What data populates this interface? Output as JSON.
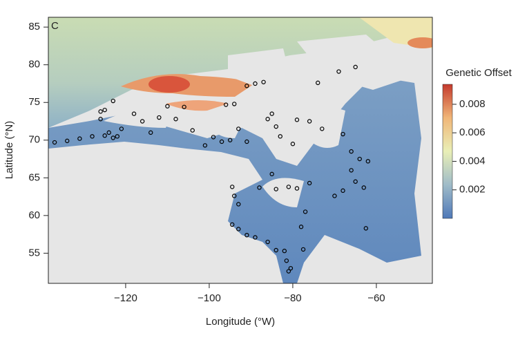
{
  "chart_data": {
    "type": "map",
    "panel_label": "C",
    "x_label": "Longitude (°W)",
    "y_label": "Latitude (°N)",
    "xlim": [
      -138.5,
      -46.6
    ],
    "ylim": [
      51,
      86.3
    ],
    "xticks": [
      {
        "value": -120,
        "label": "−120"
      },
      {
        "value": -100,
        "label": "−100"
      },
      {
        "value": -80,
        "label": "−80"
      },
      {
        "value": -60,
        "label": "−60"
      }
    ],
    "yticks": [
      55,
      60,
      65,
      70,
      75,
      80,
      85
    ],
    "colorbar": {
      "title": "Genetic Offset",
      "lim": [
        0,
        0.0094
      ],
      "ticks": [
        0.002,
        0.004,
        0.006,
        0.008
      ],
      "colors": [
        "#4f79b8",
        "#9fbbc8",
        "#e9efb6",
        "#f0b678",
        "#c43a2d"
      ]
    },
    "points": {
      "color": "#000000",
      "x": [
        -137,
        -134,
        -131,
        -128,
        -125,
        -124,
        -123,
        -122,
        -121,
        -126,
        -125,
        -123,
        -126,
        -118,
        -116,
        -112,
        -110,
        -108,
        -106,
        -114,
        -104,
        -101,
        -99,
        -97,
        -95,
        -93,
        -91,
        -96,
        -94,
        -91,
        -89,
        -87,
        -86,
        -85,
        -84,
        -83,
        -80,
        -79,
        -76,
        -73,
        -69,
        -65,
        -74,
        -68,
        -66,
        -64,
        -62,
        -66,
        -65,
        -63,
        -68,
        -70,
        -85,
        -88,
        -84,
        -81,
        -79,
        -76,
        -94.5,
        -93,
        -91,
        -89,
        -86,
        -84,
        -82,
        -81.5,
        -80.5,
        -81,
        -77.5,
        -78,
        -77,
        -93,
        -94,
        -94.5,
        -62.5
      ],
      "y": [
        69.7,
        69.9,
        70.2,
        70.5,
        70.6,
        71,
        70.3,
        70.5,
        71.5,
        72.8,
        74,
        75.2,
        73.8,
        73.5,
        72.5,
        73,
        74.5,
        72.8,
        74.4,
        71,
        71.3,
        69.3,
        70.4,
        69.8,
        70,
        71.5,
        69.8,
        74.7,
        74.8,
        77.2,
        77.5,
        77.7,
        72.8,
        73.5,
        71.8,
        70.5,
        69.5,
        72.7,
        72.5,
        71.5,
        79.1,
        79.7,
        77.6,
        70.8,
        68.5,
        67.5,
        67.2,
        66,
        64.5,
        63.7,
        63.3,
        62.6,
        65.5,
        63.7,
        63.5,
        63.8,
        63.6,
        64.3,
        58.8,
        58.2,
        57.4,
        57.1,
        56.5,
        55.4,
        55.3,
        54,
        53,
        52.6,
        55.5,
        58.5,
        60.5,
        61.5,
        62.6,
        63.8,
        58.3
      ]
    }
  }
}
